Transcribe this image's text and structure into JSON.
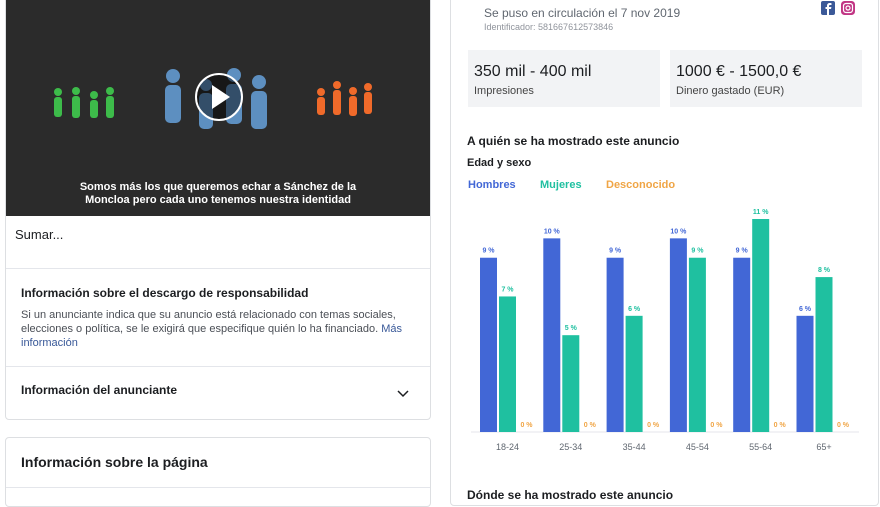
{
  "ad": {
    "video_caption": [
      "Somos más los que queremos echar a Sánchez de la",
      "Moncloa pero cada uno tenemos nuestra identidad"
    ],
    "text": "Sumar..."
  },
  "disclaimer": {
    "title": "Información sobre el descargo de responsabilidad",
    "body": "Si un anunciante indica que su anuncio está relacionado con temas sociales, elecciones o política, se le exigirá que especifique quién lo ha financiado.",
    "link": "Más información"
  },
  "advertiser": {
    "title": "Información del anunciante"
  },
  "page_info": {
    "title": "Información sobre la página"
  },
  "meta": {
    "started": "Se puso en circulación el 7 nov 2019",
    "id": "Identificador: 581667612573846"
  },
  "stats": [
    {
      "value": "350 mil - 400 mil",
      "label": "Impresiones"
    },
    {
      "value": "1000 € - 1500,0 €",
      "label": "Dinero gastado (EUR)"
    }
  ],
  "audience": {
    "title": "A quién se ha mostrado este anuncio",
    "subtitle": "Edad y sexo"
  },
  "chart_data": {
    "type": "bar",
    "categories": [
      "18-24",
      "25-34",
      "35-44",
      "45-54",
      "55-64",
      "65+"
    ],
    "series": [
      {
        "name": "Hombres",
        "color": "#4267d6",
        "values": [
          9,
          10,
          9,
          10,
          9,
          6
        ],
        "value_labels": [
          "9 %",
          "10 %",
          "9 %",
          "10 %",
          "9 %",
          "6 %"
        ]
      },
      {
        "name": "Mujeres",
        "color": "#1fc0a0",
        "values": [
          7,
          5,
          6,
          9,
          11,
          8
        ],
        "value_labels": [
          "7 %",
          "5 %",
          "6 %",
          "9 %",
          "11 %",
          "8 %"
        ]
      },
      {
        "name": "Desconocido",
        "color": "#f0a545",
        "values": [
          0,
          0,
          0,
          0,
          0,
          0
        ],
        "value_labels": [
          "0 %",
          "0 %",
          "0 %",
          "0 %",
          "0 %",
          "0 %"
        ]
      }
    ]
  },
  "footer_heading": "Dónde se ha mostrado este anuncio"
}
